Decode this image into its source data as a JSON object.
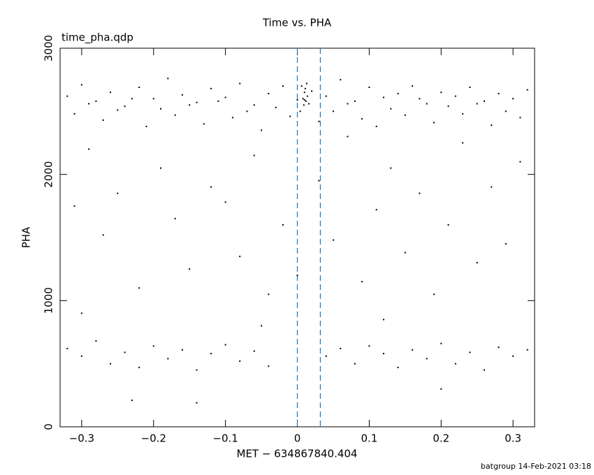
{
  "chart_data": {
    "type": "scatter",
    "title": "Time vs. PHA",
    "subtitle": "time_pha.qdp",
    "x_label": "MET − 634867840.404",
    "y_label": "PHA",
    "footer": "batgroup 14-Feb-2021 03:18",
    "color": "#000000",
    "xlim": [
      -0.33,
      0.33
    ],
    "ylim": [
      0,
      3000
    ],
    "xticks": [
      {
        "value": -0.3,
        "label": "−0.3"
      },
      {
        "value": -0.2,
        "label": "−0.2"
      },
      {
        "value": -0.1,
        "label": "−0.1"
      },
      0,
      0.1,
      0.2,
      0.3
    ],
    "yticks": [
      0,
      1000,
      2000,
      3000
    ],
    "vlines": [
      0,
      0.032
    ],
    "vline_color": "#1f7fd0",
    "x": [
      -0.32,
      -0.3,
      -0.28,
      -0.26,
      -0.24,
      -0.22,
      -0.2,
      -0.18,
      -0.16,
      -0.14,
      -0.12,
      -0.1,
      -0.08,
      -0.06,
      -0.04,
      -0.02,
      0,
      0.02,
      0.04,
      0.06,
      0.08,
      0.1,
      0.12,
      0.14,
      0.16,
      0.18,
      0.2,
      0.22,
      0.24,
      0.26,
      0.28,
      0.3,
      0.32,
      -0.31,
      -0.29,
      -0.27,
      -0.25,
      -0.23,
      -0.21,
      -0.19,
      -0.17,
      -0.15,
      -0.13,
      -0.11,
      -0.09,
      -0.07,
      -0.05,
      -0.03,
      -0.01,
      0.01,
      0.03,
      0.05,
      0.07,
      0.09,
      0.11,
      0.13,
      0.15,
      0.17,
      0.19,
      0.21,
      0.23,
      0.25,
      0.27,
      0.29,
      0.31,
      -0.29,
      -0.27,
      -0.25,
      -0.22,
      -0.19,
      -0.17,
      -0.15,
      -0.12,
      -0.1,
      -0.08,
      -0.06,
      -0.04,
      -0.02,
      0.03,
      0.05,
      0.07,
      0.09,
      0.11,
      0.13,
      0.15,
      0.17,
      0.19,
      0.21,
      0.23,
      0.25,
      0.27,
      0.29,
      0.31,
      -0.31,
      0,
      -0.32,
      -0.3,
      -0.28,
      -0.26,
      -0.24,
      -0.22,
      -0.2,
      -0.18,
      -0.16,
      -0.14,
      -0.12,
      -0.1,
      -0.08,
      -0.06,
      -0.04,
      0.04,
      0.06,
      0.08,
      0.1,
      0.12,
      0.14,
      0.16,
      0.18,
      0.2,
      0.22,
      0.24,
      0.26,
      0.28,
      0.3,
      0.32,
      -0.23,
      -0.14,
      0.2,
      -0.05,
      0.12,
      -0.3,
      0.008,
      0.01,
      0.012,
      0.006,
      0.014,
      0.009,
      0.011,
      0.004,
      0.016,
      0.013
    ],
    "values": [
      2620,
      2710,
      2580,
      2650,
      2540,
      2690,
      2600,
      2760,
      2630,
      2570,
      2680,
      2610,
      2720,
      2550,
      2640,
      2700,
      2590,
      2660,
      2620,
      2750,
      2580,
      2690,
      2610,
      2640,
      2700,
      2560,
      2650,
      2620,
      2690,
      2580,
      2640,
      2600,
      2670,
      2480,
      2560,
      2430,
      2510,
      2600,
      2380,
      2520,
      2470,
      2550,
      2400,
      2580,
      2450,
      2500,
      2350,
      2530,
      2460,
      2590,
      2420,
      2500,
      2560,
      2440,
      2380,
      2520,
      2470,
      2600,
      2410,
      2540,
      2480,
      2560,
      2390,
      2500,
      2450,
      2200,
      1520,
      1850,
      1100,
      2050,
      1650,
      1250,
      1900,
      1780,
      1350,
      2150,
      1050,
      1600,
      1950,
      1480,
      2300,
      1150,
      1720,
      2050,
      1380,
      1850,
      1050,
      1600,
      2250,
      1300,
      1900,
      1450,
      2100,
      1750,
      1200,
      620,
      560,
      680,
      500,
      590,
      470,
      640,
      540,
      610,
      450,
      580,
      650,
      520,
      600,
      480,
      560,
      620,
      500,
      640,
      580,
      470,
      610,
      540,
      660,
      500,
      590,
      450,
      630,
      560,
      610,
      210,
      190,
      300,
      800,
      850,
      900,
      2600,
      2650,
      2580,
      2700,
      2620,
      2550,
      2680,
      2500,
      2560,
      2720
    ]
  }
}
